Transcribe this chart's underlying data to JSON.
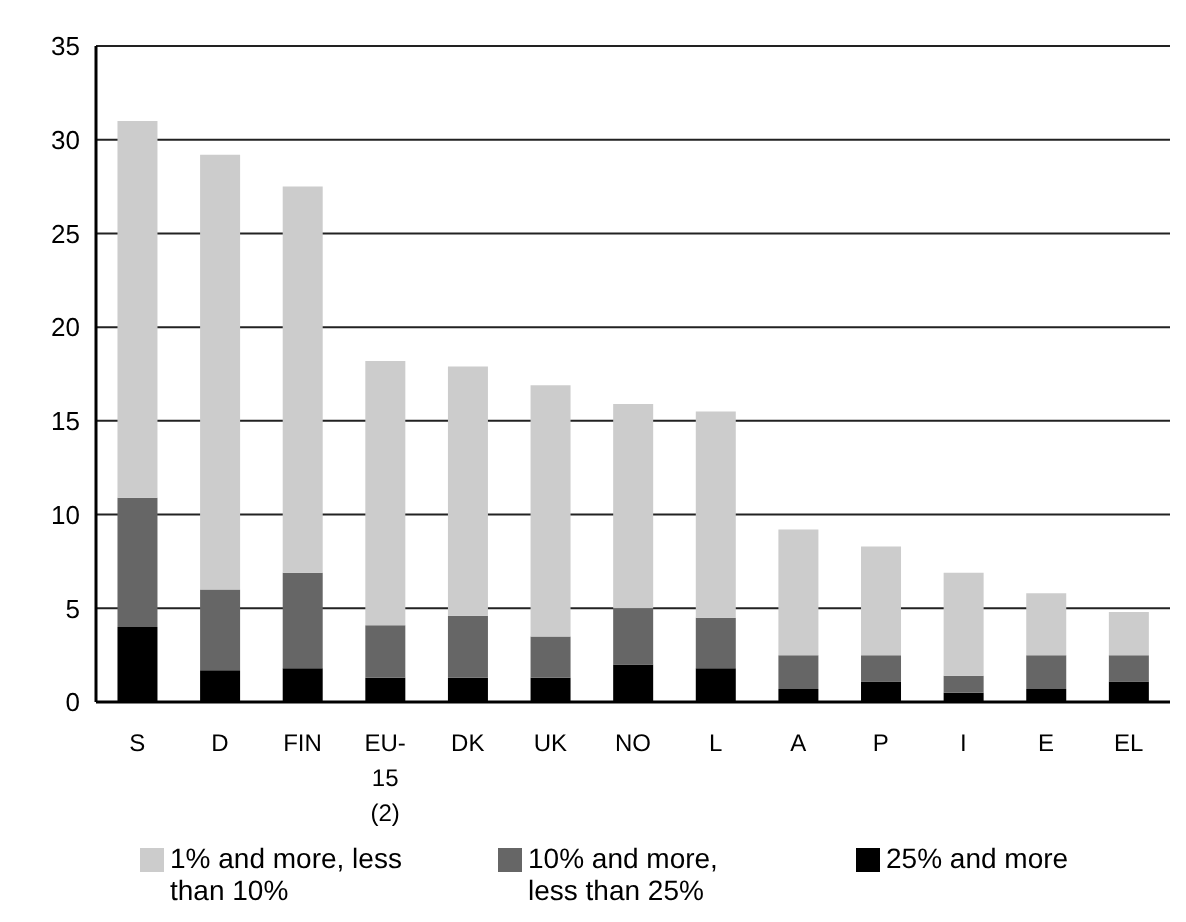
{
  "chart_data": {
    "type": "bar",
    "stacked": true,
    "categories": [
      "S",
      "D",
      "FIN",
      "EU-15 (2)",
      "DK",
      "UK",
      "NO",
      "L",
      "A",
      "P",
      "I",
      "E",
      "EL"
    ],
    "series": [
      {
        "name": "25% and more",
        "color": "#000000",
        "values": [
          4.0,
          1.7,
          1.8,
          1.3,
          1.3,
          1.3,
          2.0,
          1.8,
          0.7,
          1.1,
          0.5,
          0.7,
          1.1
        ]
      },
      {
        "name": "10% and more, less than 25%",
        "color": "#666666",
        "values": [
          6.9,
          4.3,
          5.1,
          2.8,
          3.3,
          2.2,
          3.0,
          2.7,
          1.8,
          1.4,
          0.9,
          1.8,
          1.4
        ]
      },
      {
        "name": "1% and more, less than 10%",
        "color": "#cccccc",
        "values": [
          20.1,
          23.2,
          20.6,
          14.1,
          13.3,
          13.4,
          10.9,
          11.0,
          6.7,
          5.8,
          5.5,
          3.3,
          2.3
        ]
      }
    ],
    "ylim": [
      0,
      35
    ],
    "yticks": [
      0,
      5,
      10,
      15,
      20,
      25,
      30,
      35
    ],
    "grid": "y",
    "legend": "bottom"
  }
}
